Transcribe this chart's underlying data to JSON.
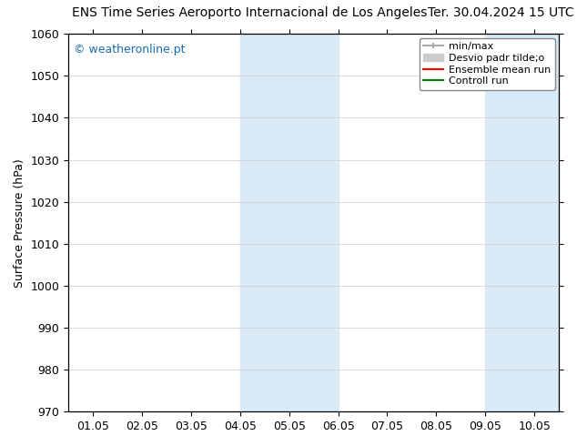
{
  "title_left": "ENS Time Series Aeroporto Internacional de Los Angeles",
  "title_right": "Ter. 30.04.2024 15 UTC",
  "ylabel": "Surface Pressure (hPa)",
  "ylim": [
    970,
    1060
  ],
  "yticks": [
    970,
    980,
    990,
    1000,
    1010,
    1020,
    1030,
    1040,
    1050,
    1060
  ],
  "xtick_labels": [
    "01.05",
    "02.05",
    "03.05",
    "04.05",
    "05.05",
    "06.05",
    "07.05",
    "08.05",
    "09.05",
    "10.05"
  ],
  "xtick_positions": [
    0,
    1,
    2,
    3,
    4,
    5,
    6,
    7,
    8,
    9
  ],
  "xlim": [
    -0.5,
    9.5
  ],
  "shaded_regions": [
    {
      "x_start": 3.0,
      "x_end": 5.0,
      "color": "#daeaf7"
    },
    {
      "x_start": 8.0,
      "x_end": 9.5,
      "color": "#daeaf7"
    }
  ],
  "watermark_text": "© weatheronline.pt",
  "watermark_color": "#1a6bb0",
  "legend_entries": [
    {
      "label": "min/max",
      "color": "#aaaaaa",
      "linewidth": 1.5
    },
    {
      "label": "Desvio padr tilde;o",
      "color": "#cccccc",
      "linewidth": 8
    },
    {
      "label": "Ensemble mean run",
      "color": "#ff0000",
      "linewidth": 1.5
    },
    {
      "label": "Controll run",
      "color": "#008000",
      "linewidth": 1.5
    }
  ],
  "bg_color": "#ffffff",
  "grid_color": "#cccccc",
  "title_fontsize": 10,
  "tick_fontsize": 9,
  "ylabel_fontsize": 9,
  "legend_fontsize": 8
}
